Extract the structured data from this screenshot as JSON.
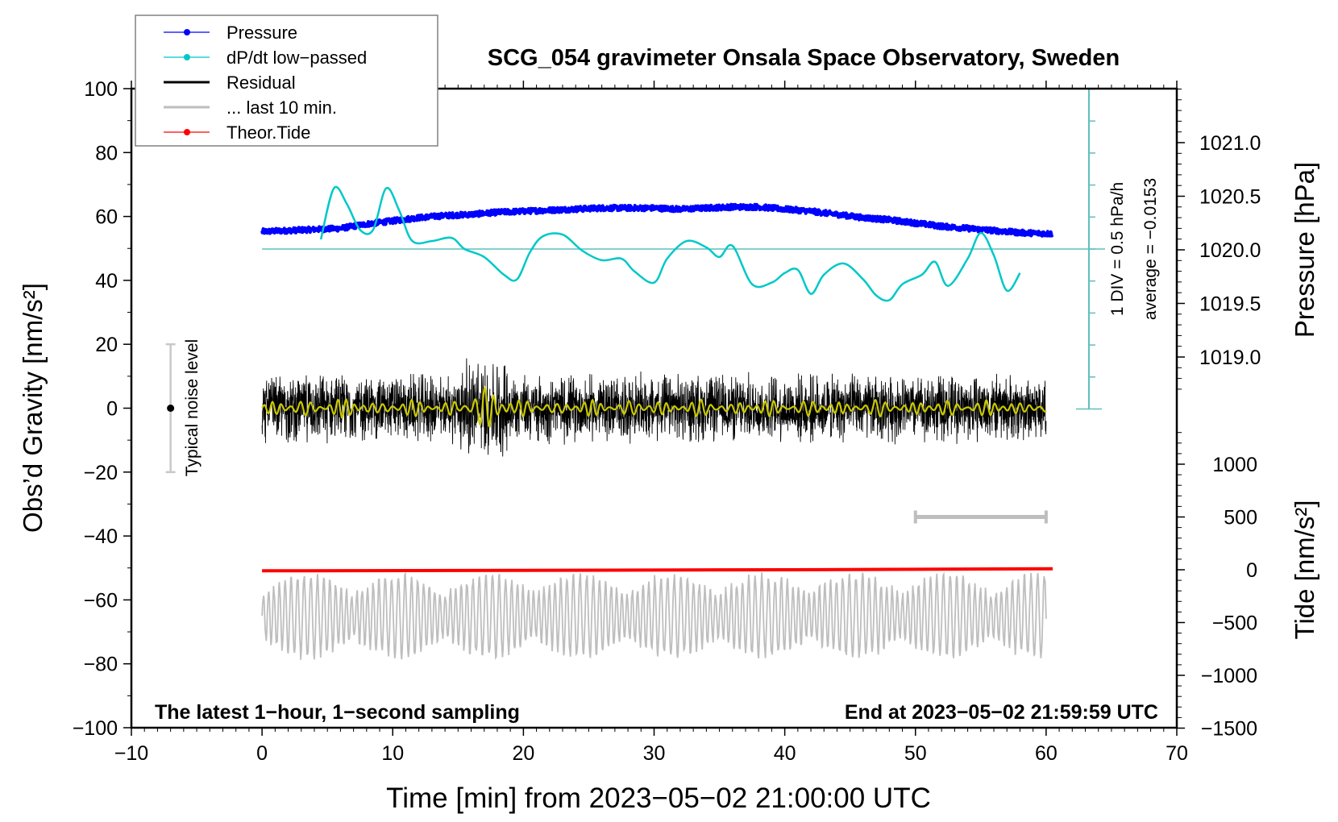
{
  "chart_data": {
    "type": "line",
    "title": "SCG_054 gravimeter Onsala Space Observatory, Sweden",
    "xlabel": "Time [min] from 2023−05−02 21:00:00 UTC",
    "ylabel_left": "Obs’d Gravity [nm/s²]",
    "ylabel_right_top": "Pressure [hPa]",
    "ylabel_right_bottom": "Tide [nm/s²]",
    "xlim": [
      -10,
      70
    ],
    "ylim_left": [
      -100,
      100
    ],
    "xticks": [
      -10,
      0,
      10,
      20,
      30,
      40,
      50,
      60,
      70
    ],
    "xtick_labels": [
      "−10",
      "0",
      "10",
      "20",
      "30",
      "40",
      "50",
      "60",
      "70"
    ],
    "yticks_left": [
      100,
      80,
      60,
      40,
      20,
      0,
      -20,
      -40,
      -60,
      -80,
      -100
    ],
    "ytick_labels_left": [
      "100",
      "80",
      "60",
      "40",
      "20",
      "0",
      "−20",
      "−40",
      "−60",
      "−80",
      "−100"
    ],
    "pressure_ticks": [
      1021.0,
      1020.5,
      1020.0,
      1019.5,
      1019.0
    ],
    "pressure_tick_labels": [
      "1021.0",
      "1020.5",
      "1020.0",
      "1019.5",
      "1019.0"
    ],
    "tide_ticks": [
      1000,
      500,
      0,
      -500,
      -1000,
      -1500
    ],
    "tide_tick_labels": [
      "1000",
      "500",
      "0",
      "−500",
      "−1000",
      "−1500"
    ],
    "grid": false,
    "legend_position": "top-left",
    "legend": [
      {
        "label": "Pressure",
        "color": "#0000ff",
        "marker": true
      },
      {
        "label": "dP/dt low−passed",
        "color": "#00c8c8",
        "marker": true
      },
      {
        "label": "Residual",
        "color": "#000000",
        "marker": false
      },
      {
        "label": "... last 10 min.",
        "color": "#bebebe",
        "marker": false
      },
      {
        "label": "Theor.Tide",
        "color": "#ff0000",
        "marker": true
      }
    ],
    "annotations": {
      "bottom_left": "The latest 1−hour, 1−second sampling",
      "bottom_right": "End at 2023−05−02 21:59:59 UTC",
      "scale_line1": "1 DIV = 0.5 hPa/h",
      "scale_line2": "average = −0.0153",
      "noise_label": "Typical noise level"
    },
    "noise_bar": {
      "x": -7,
      "center": 0,
      "range": [
        -20,
        20
      ]
    },
    "last10_bar": {
      "x_range": [
        50,
        60
      ],
      "tide_value": 500
    },
    "series": [
      {
        "name": "Pressure",
        "axis": "pressure_hPa",
        "color": "#0000ff",
        "x": [
          0,
          2,
          4,
          6,
          8,
          10,
          12,
          14,
          16,
          18,
          20,
          22,
          24,
          26,
          28,
          30,
          32,
          34,
          36,
          38,
          40,
          42,
          44,
          46,
          48,
          50,
          52,
          54,
          56,
          58,
          60.5
        ],
        "values": [
          1020.17,
          1020.18,
          1020.19,
          1020.2,
          1020.24,
          1020.27,
          1020.3,
          1020.32,
          1020.33,
          1020.35,
          1020.36,
          1020.37,
          1020.38,
          1020.39,
          1020.39,
          1020.39,
          1020.38,
          1020.39,
          1020.4,
          1020.4,
          1020.38,
          1020.36,
          1020.33,
          1020.3,
          1020.28,
          1020.25,
          1020.22,
          1020.2,
          1020.18,
          1020.16,
          1020.15
        ]
      },
      {
        "name": "dP/dt low-passed",
        "axis": "dpdt_div",
        "color": "#00c8c8",
        "unit_per_div": 0.5,
        "x": [
          4.5,
          5.5,
          6.5,
          7.5,
          8.5,
          9.5,
          10.5,
          11.5,
          13,
          14.5,
          15.5,
          17,
          18.5,
          19.5,
          20.5,
          21.5,
          23,
          24.5,
          26,
          27.5,
          28.5,
          30,
          31,
          32.5,
          34,
          35,
          36,
          37.5,
          39,
          40,
          41,
          42,
          43,
          44.5,
          46,
          47,
          48,
          49,
          50.5,
          51.5,
          52.5,
          54,
          55,
          56,
          57,
          58
        ],
        "values": [
          0.3,
          1.9,
          1.4,
          0.6,
          0.6,
          1.9,
          1.2,
          0.25,
          0.25,
          0.35,
          0.0,
          -0.25,
          -0.8,
          -0.95,
          -0.1,
          0.4,
          0.45,
          -0.05,
          -0.35,
          -0.3,
          -0.7,
          -1.05,
          -0.3,
          0.25,
          0.05,
          -0.25,
          0.1,
          -1.1,
          -1.05,
          -0.75,
          -0.65,
          -1.4,
          -0.8,
          -0.45,
          -0.95,
          -1.45,
          -1.6,
          -1.1,
          -0.8,
          -0.4,
          -1.15,
          -0.3,
          0.5,
          -0.2,
          -1.3,
          -0.75
        ]
      },
      {
        "name": "Residual",
        "axis": "gravity",
        "color": "#000000",
        "x_range": [
          0,
          60
        ],
        "envelope_nm_s2": 12,
        "note": "dense 1-s noise, mostly within ±15 nm/s², peaks ~±22"
      },
      {
        "name": "Residual low-passed",
        "axis": "gravity",
        "color": "#c8c800",
        "x_range": [
          0,
          60
        ],
        "note": "yellow smoothed trace near 0, burst ~±6 around 15–19 min"
      },
      {
        "name": "... last 10 min.",
        "axis": "gravity",
        "color": "#bebebe",
        "x_range": [
          0,
          60
        ],
        "baseline": -65,
        "range": [
          -80,
          -50
        ]
      },
      {
        "name": "Theor.Tide",
        "axis": "tide",
        "color": "#ff0000",
        "x": [
          0,
          20,
          40,
          60.5
        ],
        "values": [
          -10,
          -5,
          0,
          10
        ]
      }
    ]
  }
}
